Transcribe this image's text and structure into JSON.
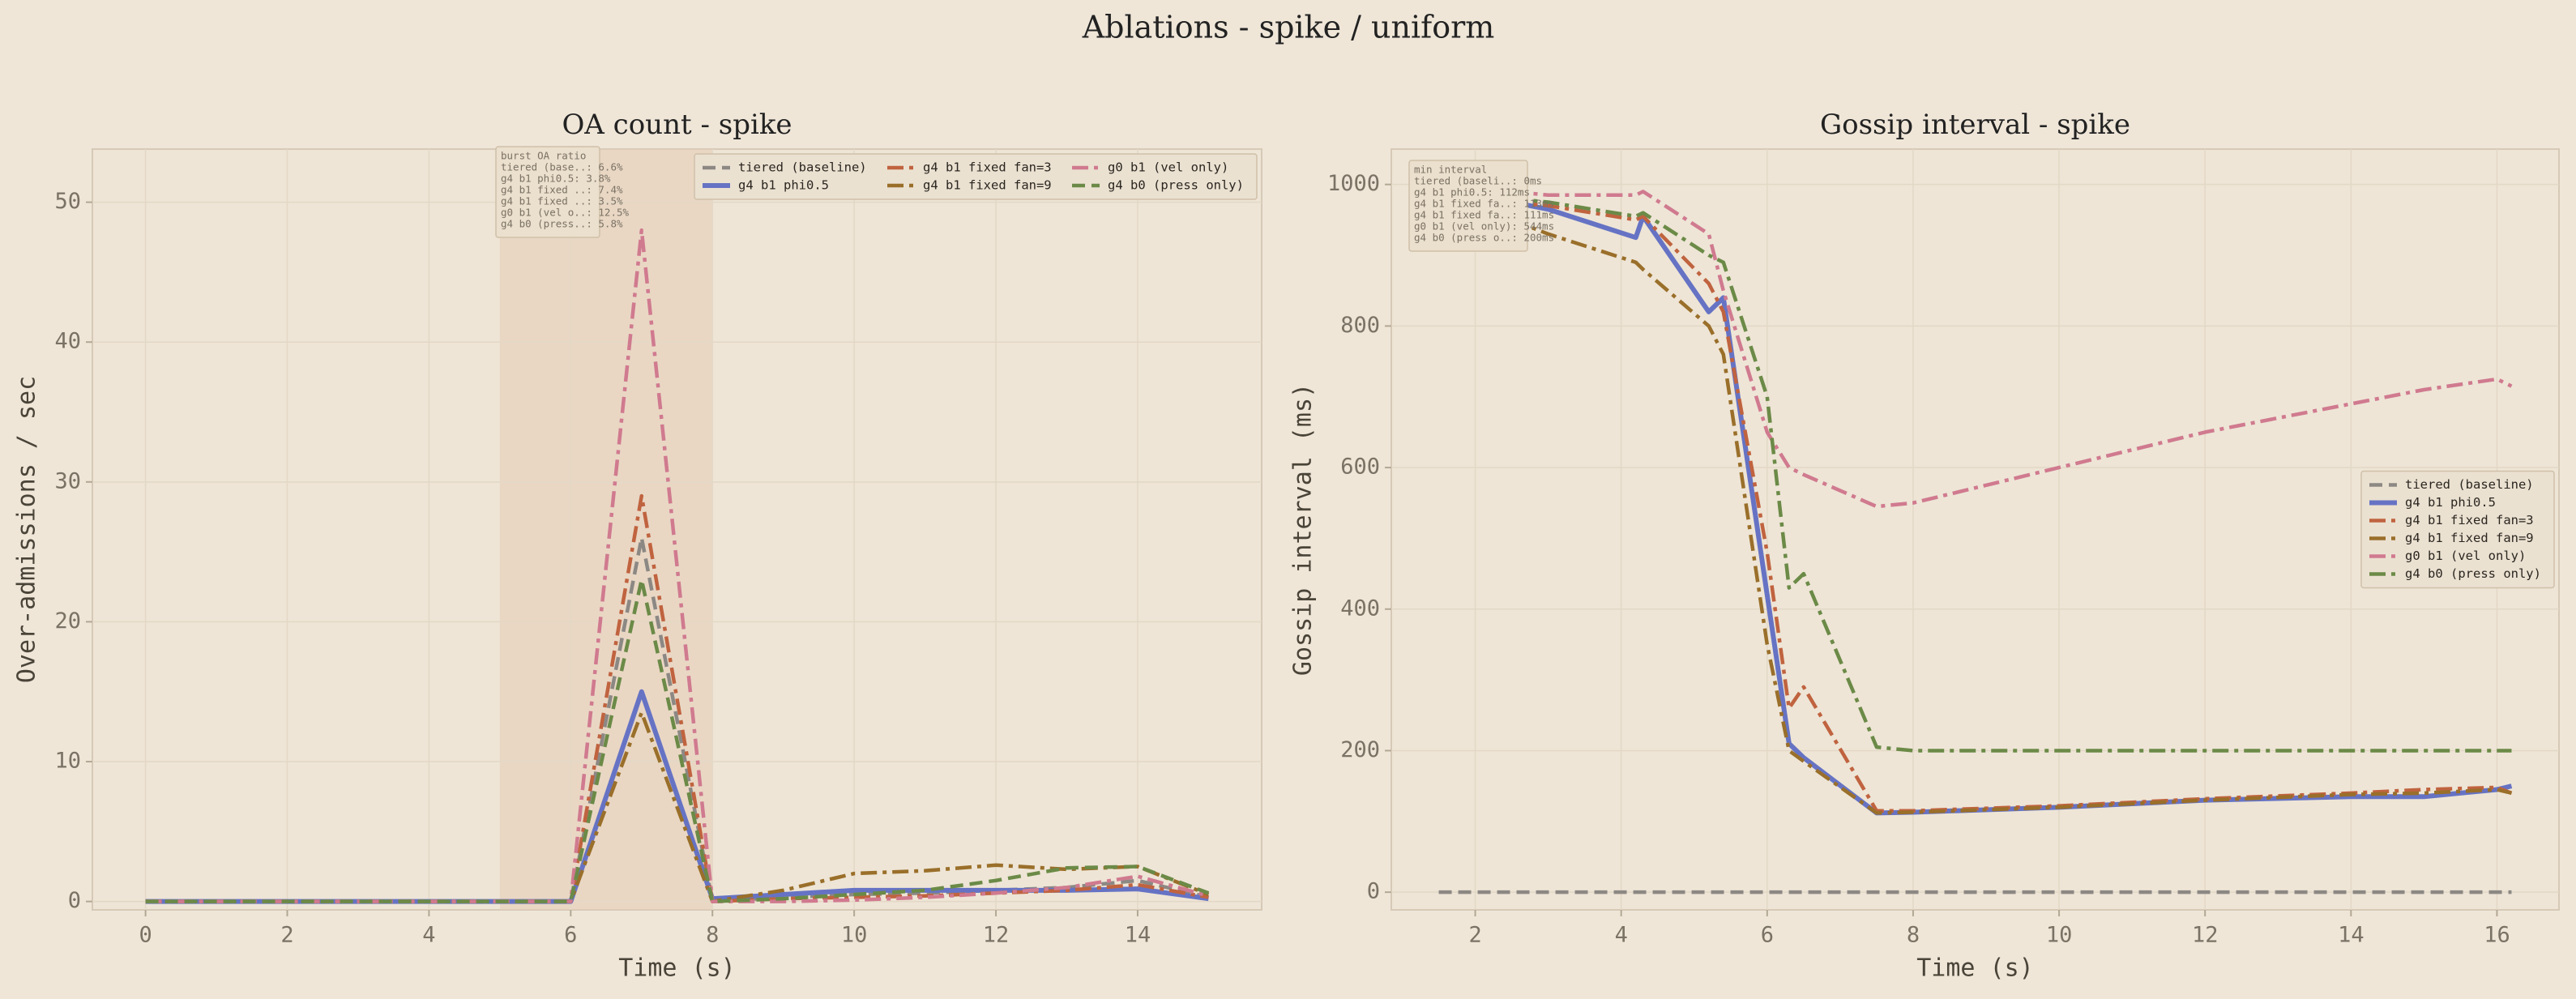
{
  "title": "Ablations - spike / uniform",
  "chart_data": [
    {
      "type": "line",
      "title": "OA count - spike",
      "xlabel": "Time (s)",
      "ylabel": "Over-admissions / sec",
      "x": [
        0,
        1,
        2,
        3,
        4,
        5,
        6,
        7,
        8,
        9,
        10,
        11,
        12,
        13,
        14,
        15
      ],
      "xlim": [
        -0.75,
        15.75
      ],
      "xticks": [
        0,
        2,
        4,
        6,
        8,
        10,
        12,
        14
      ],
      "ylim": [
        -0.6,
        53.8
      ],
      "yticks": [
        0,
        10,
        20,
        30,
        40,
        50
      ],
      "grid": true,
      "legend": "upper right",
      "legend_columns": 3,
      "shade": [
        5,
        8
      ],
      "shade_color": "#e6cdb8",
      "annotation": [
        "burst OA ratio",
        "tiered (base..: 6.6%",
        "g4 b1 phi0.5: 3.8%",
        "g4 b1 fixed ..: 7.4%",
        "g4 b1 fixed ..: 3.5%",
        "g0 b1 (vel o..: 12.5%",
        "g4 b0 (press..: 5.8%"
      ],
      "series": [
        {
          "name": "tiered (baseline)",
          "color": "#8c8884",
          "linestyle": "dashed",
          "values": [
            0,
            0,
            0,
            0,
            0,
            0,
            0,
            26,
            0,
            0.3,
            0.5,
            0.6,
            0.8,
            1.0,
            1.5,
            0.3
          ]
        },
        {
          "name": "g4 b1 phi0.5",
          "color": "#6673c4",
          "linestyle": "solid",
          "values": [
            0,
            0,
            0,
            0,
            0,
            0,
            0,
            15,
            0.2,
            0.5,
            0.8,
            0.8,
            0.8,
            0.8,
            0.9,
            0.2
          ]
        },
        {
          "name": "g4 b1 fixed fan=3",
          "color": "#c0633f",
          "linestyle": "dashdot",
          "values": [
            0,
            0,
            0,
            0,
            0,
            0,
            0,
            29,
            0,
            0.2,
            0.3,
            0.4,
            0.6,
            0.8,
            1.2,
            0.3
          ]
        },
        {
          "name": "g4 b1 fixed fan=9",
          "color": "#9a6f2a",
          "linestyle": "dashdot",
          "values": [
            0,
            0,
            0,
            0,
            0,
            0,
            0,
            13.5,
            0,
            0.8,
            2.0,
            2.2,
            2.6,
            2.3,
            2.5,
            0.5
          ]
        },
        {
          "name": "g0 b1 (vel only)",
          "color": "#d07a8f",
          "linestyle": "dashdot",
          "values": [
            0,
            0,
            0,
            0,
            0,
            0,
            0,
            48,
            0,
            0,
            0.1,
            0.3,
            0.6,
            1.0,
            1.8,
            0.4
          ]
        },
        {
          "name": "g4 b0 (press only)",
          "color": "#6b8a47",
          "linestyle": "dashed",
          "values": [
            0,
            0,
            0,
            0,
            0,
            0,
            0,
            23,
            0,
            0.2,
            0.5,
            0.8,
            1.5,
            2.4,
            2.5,
            0.6
          ]
        }
      ]
    },
    {
      "type": "line",
      "title": "Gossip interval - spike",
      "xlabel": "Time (s)",
      "ylabel": "Gossip interval (ms)",
      "x": [
        1.5,
        2.5,
        3,
        4.2,
        4.3,
        5.2,
        5.4,
        6,
        6.3,
        6.5,
        7.5,
        8,
        10,
        12,
        14,
        15,
        16,
        16.2
      ],
      "xlim": [
        0.85,
        16.85
      ],
      "xticks": [
        2,
        4,
        6,
        8,
        10,
        12,
        14,
        16
      ],
      "ylim": [
        -25,
        1050
      ],
      "yticks": [
        0,
        200,
        400,
        600,
        800,
        1000
      ],
      "grid": true,
      "legend": "center right",
      "legend_columns": 1,
      "annotation": [
        "min interval",
        "tiered (baseli..: 0ms",
        "g4 b1 phi0.5: 112ms",
        "g4 b1 fixed fa..: 113ms",
        "g4 b1 fixed fa..: 111ms",
        "g0 b1 (vel only): 544ms",
        "g4 b0 (press o..: 200ms"
      ],
      "series": [
        {
          "name": "tiered (baseline)",
          "color": "#8c8884",
          "linestyle": "dashed",
          "values": [
            0,
            0,
            0,
            0,
            0,
            0,
            0,
            0,
            0,
            0,
            0,
            0,
            0,
            0,
            0,
            0,
            0,
            0
          ]
        },
        {
          "name": "g4 b1 phi0.5",
          "color": "#6673c4",
          "linestyle": "solid",
          "values": [
            null,
            975,
            965,
            925,
            955,
            820,
            840,
            420,
            210,
            190,
            112,
            113,
            120,
            130,
            135,
            135,
            145,
            150
          ]
        },
        {
          "name": "g4 b1 fixed fan=3",
          "color": "#c0633f",
          "linestyle": "dashdot",
          "values": [
            null,
            975,
            970,
            950,
            955,
            860,
            820,
            480,
            260,
            290,
            115,
            115,
            122,
            132,
            140,
            145,
            148,
            140
          ]
        },
        {
          "name": "g4 b1 fixed fan=9",
          "color": "#9a6f2a",
          "linestyle": "dashdot",
          "values": [
            null,
            950,
            930,
            890,
            880,
            800,
            760,
            350,
            200,
            185,
            112,
            113,
            120,
            130,
            138,
            140,
            145,
            140
          ]
        },
        {
          "name": "g0 b1 (vel only)",
          "color": "#d07a8f",
          "linestyle": "dashdot",
          "values": [
            null,
            990,
            985,
            985,
            990,
            930,
            850,
            650,
            600,
            590,
            545,
            550,
            600,
            650,
            690,
            710,
            725,
            715
          ]
        },
        {
          "name": "g4 b0 (press only)",
          "color": "#6b8a47",
          "linestyle": "dashdot",
          "values": [
            null,
            980,
            975,
            955,
            960,
            900,
            890,
            700,
            430,
            450,
            205,
            200,
            200,
            200,
            200,
            200,
            200,
            200
          ]
        }
      ]
    }
  ]
}
